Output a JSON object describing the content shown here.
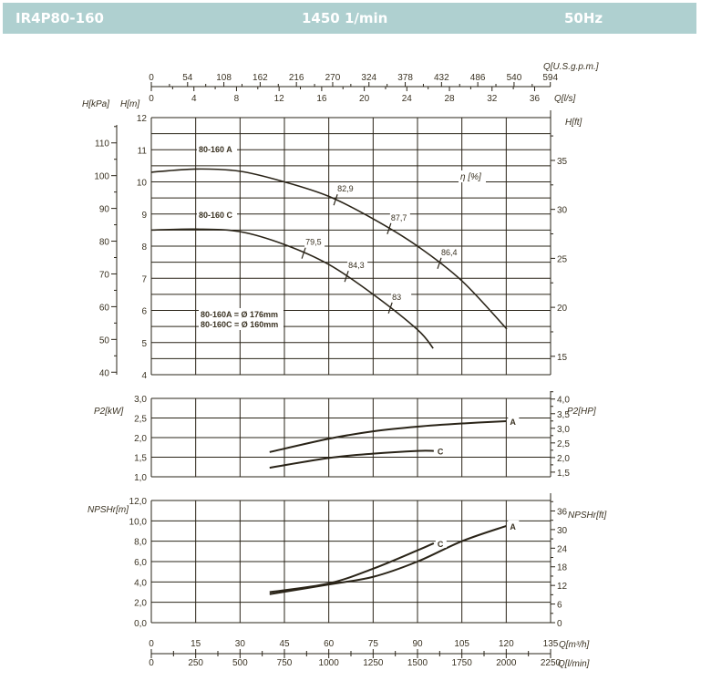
{
  "header": {
    "model": "IR4P80-160",
    "speed": "1450 1/min",
    "frequency": "50Hz",
    "background_color": "#afd0d0"
  },
  "chart_data": {
    "type": "line",
    "line_color": "#2a2418",
    "x_axes": {
      "gpm": {
        "label": "Q[U.S.g.p.m.]",
        "ticks": [
          "0",
          "54",
          "108",
          "162",
          "216",
          "270",
          "324",
          "378",
          "432",
          "486",
          "540",
          "594"
        ],
        "range": [
          0,
          594
        ]
      },
      "ls": {
        "label": "Q[l/s]",
        "ticks": [
          "0",
          "4",
          "8",
          "12",
          "16",
          "20",
          "24",
          "28",
          "32",
          "36"
        ]
      },
      "m3h": {
        "label": "Q[m³/h]",
        "ticks": [
          "0",
          "15",
          "30",
          "45",
          "60",
          "75",
          "90",
          "105",
          "120",
          "135"
        ],
        "range": [
          0,
          135
        ]
      },
      "lmin": {
        "label": "Q[l/min]",
        "ticks": [
          "0",
          "250",
          "500",
          "750",
          "1000",
          "1250",
          "1500",
          "1750",
          "2000",
          "2250"
        ]
      }
    },
    "panels": [
      {
        "id": "head",
        "grid": true,
        "ylim": [
          4,
          12
        ],
        "y_left": {
          "label": "H[m]",
          "ticks": [
            "4",
            "5",
            "6",
            "7",
            "8",
            "9",
            "10",
            "11",
            "12"
          ]
        },
        "y_left_outer": {
          "label": "H[kPa]",
          "ticks": [
            "40",
            "50",
            "60",
            "70",
            "80",
            "90",
            "100",
            "110"
          ]
        },
        "y_right": {
          "label": "H[ft]",
          "ticks": [
            "15",
            "20",
            "25",
            "30",
            "35"
          ]
        },
        "efficiency_label": "η [%]",
        "annotations": [
          "80-160A = Ø 176mm",
          "80-160C = Ø 160mm"
        ],
        "series": [
          {
            "name": "80-160 A",
            "x": [
              0,
              15,
              30,
              45,
              60,
              75,
              90,
              105,
              120.2
            ],
            "y": [
              10.3,
              10.4,
              10.33,
              10.0,
              9.55,
              8.85,
              8.0,
              6.92,
              5.42
            ],
            "efficiency": [
              {
                "q": 62.3,
                "value": "82,9"
              },
              {
                "q": 80.4,
                "value": "87,7"
              },
              {
                "q": 97.4,
                "value": "86,4"
              }
            ]
          },
          {
            "name": "80-160 C",
            "x": [
              0,
              15,
              30,
              45,
              60,
              75,
              90,
              95.3
            ],
            "y": [
              8.5,
              8.53,
              8.45,
              8.05,
              7.43,
              6.5,
              5.4,
              4.82
            ],
            "efficiency": [
              {
                "q": 51.5,
                "value": "79,5"
              },
              {
                "q": 66,
                "value": "84,3"
              },
              {
                "q": 80.8,
                "value": "83"
              }
            ]
          }
        ]
      },
      {
        "id": "power",
        "grid": true,
        "ylim": [
          1.0,
          3.0
        ],
        "y_left": {
          "label": "P2[kW]",
          "ticks": [
            "1,0",
            "1,5",
            "2,0",
            "2,5",
            "3,0"
          ]
        },
        "y_right": {
          "label": "P2[HP]",
          "ticks": [
            "1,5",
            "2,0",
            "2,5",
            "3,0",
            "3,5",
            "4,0"
          ]
        },
        "series": [
          {
            "name": "A",
            "x": [
              40,
              60,
              75,
              90,
              105,
              120
            ],
            "y": [
              1.63,
              1.97,
              2.16,
              2.28,
              2.36,
              2.42
            ]
          },
          {
            "name": "C",
            "x": [
              40,
              60,
              75,
              90,
              95.5
            ],
            "y": [
              1.23,
              1.48,
              1.59,
              1.66,
              1.66
            ]
          }
        ]
      },
      {
        "id": "npsh",
        "grid": true,
        "ylim": [
          0,
          12
        ],
        "y_left": {
          "label": "NPSHr[m]",
          "ticks": [
            "0,0",
            "2,0",
            "4,0",
            "6,0",
            "8,0",
            "10,0",
            "12,0"
          ]
        },
        "y_right": {
          "label": "NPSHr[ft]",
          "ticks": [
            "0",
            "6",
            "12",
            "18",
            "24",
            "30",
            "36"
          ]
        },
        "series": [
          {
            "name": "A",
            "x": [
              40,
              60,
              75,
              90,
              105,
              120
            ],
            "y": [
              2.8,
              3.75,
              4.5,
              6.0,
              8.0,
              9.5
            ]
          },
          {
            "name": "C",
            "x": [
              40,
              60,
              75,
              90,
              95.5
            ],
            "y": [
              3.0,
              3.85,
              5.3,
              7.1,
              7.8
            ]
          }
        ]
      }
    ]
  }
}
